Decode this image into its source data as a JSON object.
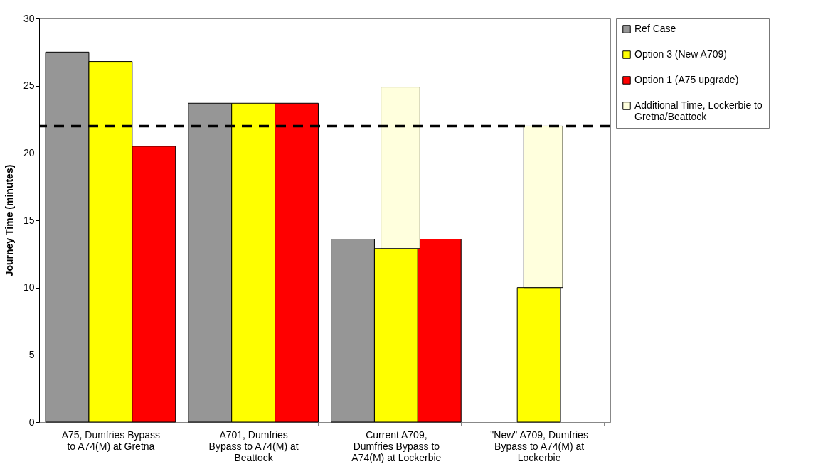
{
  "chart_data": {
    "type": "bar",
    "ylabel": "Journey Time (minutes)",
    "categories": [
      "A75, Dumfries Bypass to A74(M) at Gretna",
      "A701, Dumfries Bypass to A74(M) at Beattock",
      "Current A709, Dumfries Bypass to A74(M) at Lockerbie",
      "\"New\" A709, Dumfries Bypass to A74(M) at Lockerbie"
    ],
    "series": [
      {
        "name": "Ref Case",
        "color": "#969696",
        "values": [
          27.5,
          23.7,
          13.6,
          null
        ]
      },
      {
        "name": "Option 3 (New A709)",
        "color": "#ffff00",
        "values": [
          26.8,
          23.7,
          12.9,
          10.0
        ]
      },
      {
        "name": "Option 1 (A75 upgrade)",
        "color": "#ff0000",
        "values": [
          20.5,
          23.7,
          13.6,
          null
        ]
      },
      {
        "name": "Additional Time, Lockerbie to Gretna/Beattock",
        "color": "#ffffdd",
        "values": [
          null,
          null,
          12.0,
          12.0
        ],
        "base": [
          null,
          null,
          12.9,
          10.0
        ]
      }
    ],
    "ylim": [
      0,
      30
    ],
    "yticks": [
      0,
      5,
      10,
      15,
      20,
      25,
      30
    ],
    "legend": "top right",
    "ref_lines": [
      {
        "axis": "y",
        "value": 22,
        "color": "#000000",
        "line_style": "dashed"
      }
    ]
  }
}
